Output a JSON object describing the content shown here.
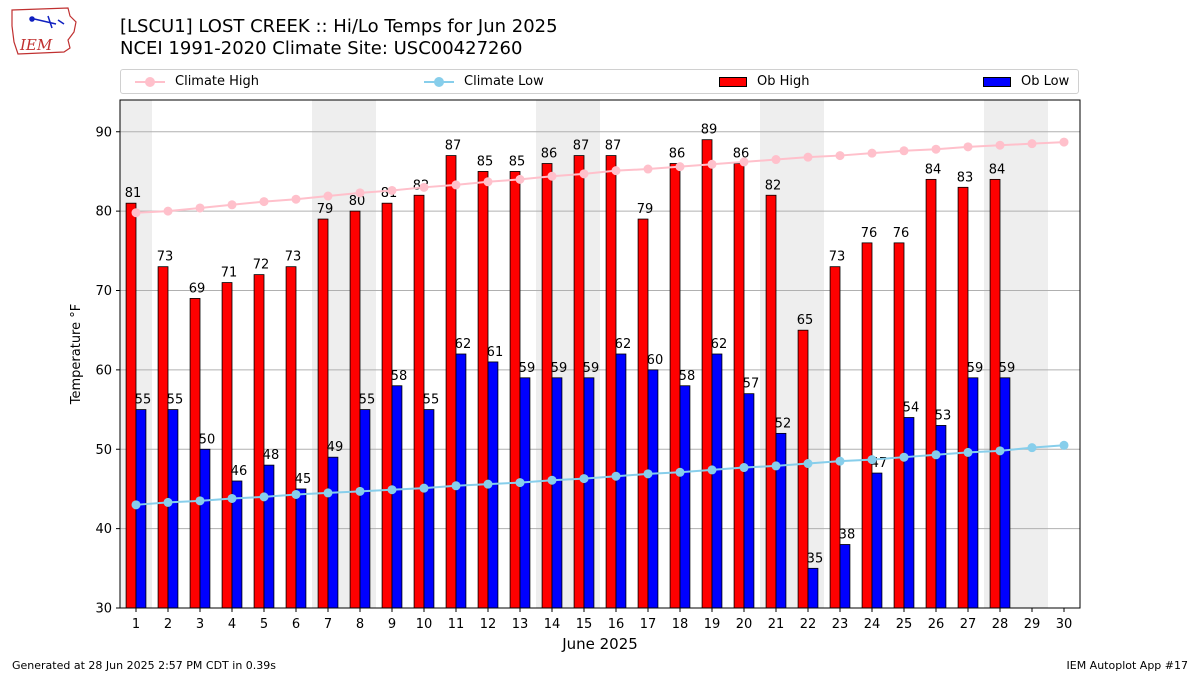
{
  "header": {
    "title_line1": "[LSCU1] LOST CREEK :: Hi/Lo Temps for Jun 2025",
    "title_line2": "NCEI 1991-2020 Climate Site: USC00427260"
  },
  "logo": {
    "text": "IEM"
  },
  "footer": {
    "generated": "Generated at 28 Jun 2025 2:57 PM CDT in 0.39s",
    "app": "IEM Autoplot App #17"
  },
  "colors": {
    "ob_high": "#ff0000",
    "ob_low": "#0000ff",
    "climate_high": "#ffc0cb",
    "climate_low": "#87ceeb",
    "weekend_shade": "#eeeeee",
    "grid": "#b0b0b0"
  },
  "chart_data": {
    "type": "bar",
    "xlabel": "June 2025",
    "ylabel": "Temperature °F",
    "ylim": [
      30,
      94
    ],
    "yticks": [
      30,
      40,
      50,
      60,
      70,
      80,
      90
    ],
    "categories": [
      "1",
      "2",
      "3",
      "4",
      "5",
      "6",
      "7",
      "8",
      "9",
      "10",
      "11",
      "12",
      "13",
      "14",
      "15",
      "16",
      "17",
      "18",
      "19",
      "20",
      "21",
      "22",
      "23",
      "24",
      "25",
      "26",
      "27",
      "28",
      "29",
      "30"
    ],
    "shaded_days": [
      1,
      7,
      8,
      14,
      15,
      21,
      22,
      28,
      29
    ],
    "legend_placement": "top",
    "grid": "horizontal",
    "series": [
      {
        "name": "Climate High",
        "kind": "line",
        "values": [
          79.8,
          80.0,
          80.4,
          80.8,
          81.2,
          81.5,
          81.9,
          82.3,
          82.6,
          83.0,
          83.3,
          83.7,
          84.0,
          84.4,
          84.7,
          85.1,
          85.3,
          85.6,
          85.9,
          86.2,
          86.5,
          86.8,
          87.0,
          87.3,
          87.6,
          87.8,
          88.1,
          88.3,
          88.5,
          88.7
        ]
      },
      {
        "name": "Climate Low",
        "kind": "line",
        "values": [
          43.0,
          43.3,
          43.5,
          43.8,
          44.0,
          44.3,
          44.5,
          44.7,
          44.9,
          45.1,
          45.4,
          45.6,
          45.8,
          46.1,
          46.3,
          46.6,
          46.9,
          47.1,
          47.4,
          47.7,
          47.9,
          48.2,
          48.5,
          48.7,
          49.0,
          49.3,
          49.6,
          49.8,
          50.2,
          50.5
        ]
      },
      {
        "name": "Ob High",
        "kind": "bar",
        "values": [
          81,
          73,
          69,
          71,
          72,
          73,
          79,
          80,
          81,
          82,
          87,
          85,
          85,
          86,
          87,
          87,
          79,
          86,
          89,
          86,
          82,
          65,
          73,
          76,
          76,
          84,
          83,
          84,
          null,
          null
        ]
      },
      {
        "name": "Ob Low",
        "kind": "bar",
        "values": [
          55,
          55,
          50,
          46,
          48,
          45,
          49,
          55,
          58,
          55,
          62,
          61,
          59,
          59,
          59,
          62,
          60,
          58,
          62,
          57,
          52,
          35,
          38,
          47,
          54,
          53,
          59,
          59,
          null,
          null
        ]
      }
    ]
  }
}
